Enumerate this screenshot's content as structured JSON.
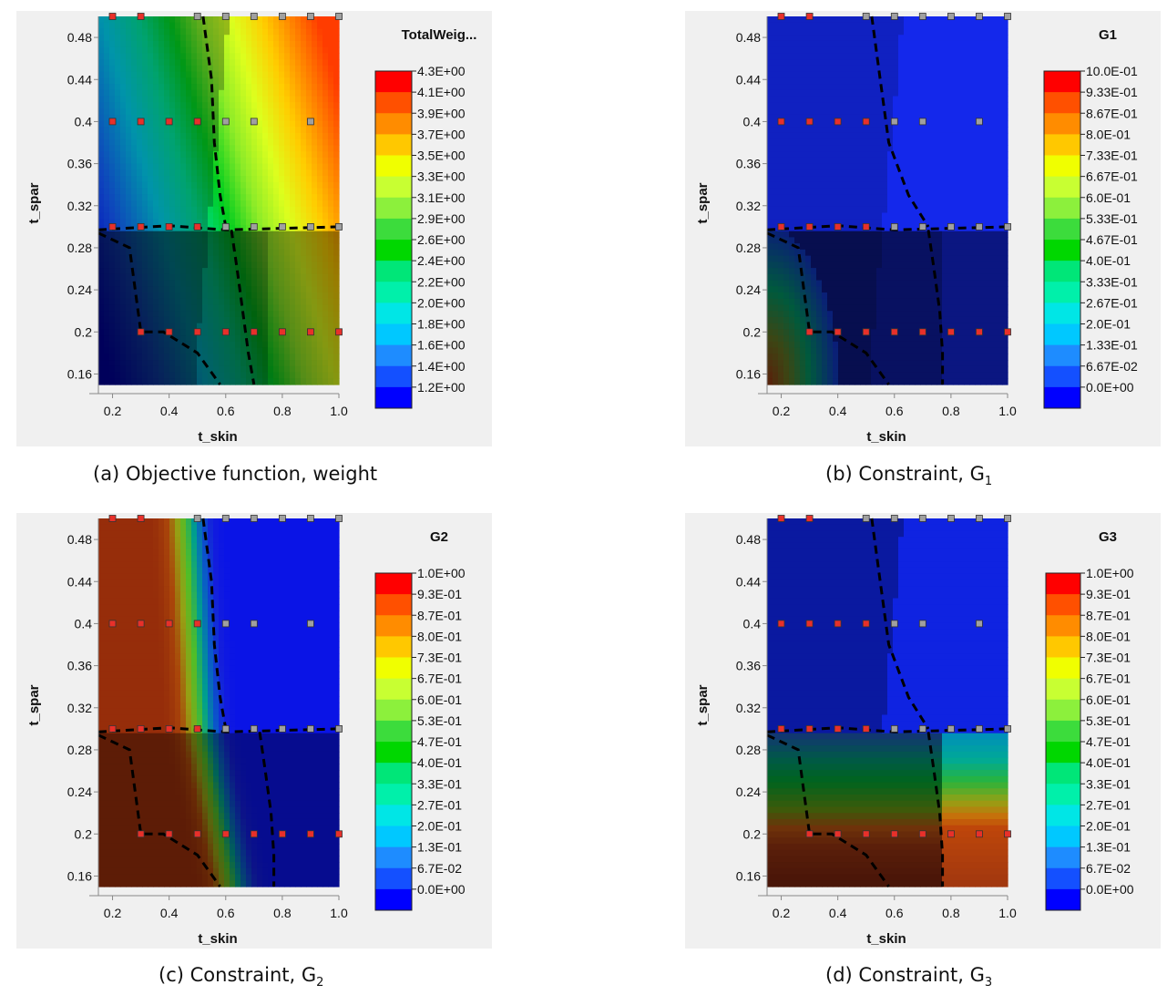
{
  "figure": {
    "panels": [
      {
        "letter": "(a)",
        "caption": "Objective function, weight",
        "subscript": ""
      },
      {
        "letter": "(b)",
        "caption": "Constraint, G",
        "subscript": "1"
      },
      {
        "letter": "(c)",
        "caption": "Constraint, G",
        "subscript": "2"
      },
      {
        "letter": "(d)",
        "caption": "Constraint, G",
        "subscript": "3"
      }
    ]
  },
  "chart_data": [
    {
      "type": "heatmap",
      "title": "TotalWeig...",
      "xlabel": "t_skin",
      "ylabel": "t_spar",
      "xlim": [
        0.15,
        1.0
      ],
      "ylim": [
        0.15,
        0.5
      ],
      "x_ticks": [
        "0.2",
        "0.4",
        "0.6",
        "0.8",
        "1.0"
      ],
      "y_ticks": [
        "0.48",
        "0.44",
        "0.4",
        "0.36",
        "0.32",
        "0.28",
        "0.24",
        "0.2",
        "0.16"
      ],
      "legend_levels": [
        "4.3E+00",
        "4.1E+00",
        "3.9E+00",
        "3.7E+00",
        "3.5E+00",
        "3.3E+00",
        "3.1E+00",
        "2.9E+00",
        "2.6E+00",
        "2.4E+00",
        "2.2E+00",
        "2.0E+00",
        "1.8E+00",
        "1.6E+00",
        "1.4E+00",
        "1.2E+00"
      ],
      "legend_colors": [
        "#ff0000",
        "#ff5000",
        "#ff8c00",
        "#ffc800",
        "#f0ff00",
        "#c8ff32",
        "#8cf03c",
        "#3cdc3c",
        "#00d700",
        "#00e678",
        "#00f0aa",
        "#00e6e6",
        "#00c8ff",
        "#1e8cff",
        "#1450ff",
        "#0000ff"
      ],
      "field": "weight",
      "sample_points": {
        "red": [
          [
            0.2,
            0.5
          ],
          [
            0.3,
            0.5
          ],
          [
            0.2,
            0.4
          ],
          [
            0.3,
            0.4
          ],
          [
            0.4,
            0.4
          ],
          [
            0.5,
            0.4
          ],
          [
            0.2,
            0.3
          ],
          [
            0.3,
            0.3
          ],
          [
            0.4,
            0.3
          ],
          [
            0.5,
            0.3
          ],
          [
            0.3,
            0.2
          ],
          [
            0.4,
            0.2
          ],
          [
            0.5,
            0.2
          ],
          [
            0.6,
            0.2
          ],
          [
            0.7,
            0.2
          ],
          [
            0.8,
            0.2
          ],
          [
            0.9,
            0.2
          ],
          [
            1.0,
            0.2
          ]
        ],
        "gray": [
          [
            0.5,
            0.5
          ],
          [
            0.6,
            0.5
          ],
          [
            0.7,
            0.5
          ],
          [
            0.8,
            0.5
          ],
          [
            0.9,
            0.5
          ],
          [
            1.0,
            0.5
          ],
          [
            0.6,
            0.4
          ],
          [
            0.7,
            0.4
          ],
          [
            0.9,
            0.4
          ],
          [
            0.6,
            0.3
          ],
          [
            0.7,
            0.3
          ],
          [
            0.8,
            0.3
          ],
          [
            0.9,
            0.3
          ],
          [
            1.0,
            0.3
          ]
        ]
      }
    },
    {
      "type": "heatmap",
      "title": "G1",
      "xlabel": "t_skin",
      "ylabel": "t_spar",
      "xlim": [
        0.15,
        1.0
      ],
      "ylim": [
        0.15,
        0.5
      ],
      "x_ticks": [
        "0.2",
        "0.4",
        "0.6",
        "0.8",
        "1.0"
      ],
      "y_ticks": [
        "0.48",
        "0.44",
        "0.4",
        "0.36",
        "0.32",
        "0.28",
        "0.24",
        "0.2",
        "0.16"
      ],
      "legend_levels": [
        "10.0E-01",
        "9.33E-01",
        "8.67E-01",
        "8.0E-01",
        "7.33E-01",
        "6.67E-01",
        "6.0E-01",
        "5.33E-01",
        "4.67E-01",
        "4.0E-01",
        "3.33E-01",
        "2.67E-01",
        "2.0E-01",
        "1.33E-01",
        "6.67E-02",
        "0.0E+00"
      ],
      "legend_colors": [
        "#ff0000",
        "#ff5000",
        "#ff8c00",
        "#ffc800",
        "#f0ff00",
        "#c8ff32",
        "#8cf03c",
        "#3cdc3c",
        "#00d700",
        "#00e678",
        "#00f0aa",
        "#00e6e6",
        "#00c8ff",
        "#1e8cff",
        "#1450ff",
        "#0000ff"
      ],
      "field": "g1",
      "sample_points": {
        "red": [
          [
            0.2,
            0.5
          ],
          [
            0.3,
            0.5
          ],
          [
            0.2,
            0.4
          ],
          [
            0.3,
            0.4
          ],
          [
            0.4,
            0.4
          ],
          [
            0.5,
            0.4
          ],
          [
            0.2,
            0.3
          ],
          [
            0.3,
            0.3
          ],
          [
            0.4,
            0.3
          ],
          [
            0.5,
            0.3
          ],
          [
            0.3,
            0.2
          ],
          [
            0.4,
            0.2
          ],
          [
            0.5,
            0.2
          ],
          [
            0.6,
            0.2
          ],
          [
            0.7,
            0.2
          ],
          [
            0.8,
            0.2
          ],
          [
            0.9,
            0.2
          ],
          [
            1.0,
            0.2
          ]
        ],
        "gray": [
          [
            0.5,
            0.5
          ],
          [
            0.6,
            0.5
          ],
          [
            0.7,
            0.5
          ],
          [
            0.8,
            0.5
          ],
          [
            0.9,
            0.5
          ],
          [
            1.0,
            0.5
          ],
          [
            0.6,
            0.4
          ],
          [
            0.7,
            0.4
          ],
          [
            0.9,
            0.4
          ],
          [
            0.6,
            0.3
          ],
          [
            0.7,
            0.3
          ],
          [
            0.8,
            0.3
          ],
          [
            0.9,
            0.3
          ],
          [
            1.0,
            0.3
          ]
        ]
      }
    },
    {
      "type": "heatmap",
      "title": "G2",
      "xlabel": "t_skin",
      "ylabel": "t_spar",
      "xlim": [
        0.15,
        1.0
      ],
      "ylim": [
        0.15,
        0.5
      ],
      "x_ticks": [
        "0.2",
        "0.4",
        "0.6",
        "0.8",
        "1.0"
      ],
      "y_ticks": [
        "0.48",
        "0.44",
        "0.4",
        "0.36",
        "0.32",
        "0.28",
        "0.24",
        "0.2",
        "0.16"
      ],
      "legend_levels": [
        "1.0E+00",
        "9.3E-01",
        "8.7E-01",
        "8.0E-01",
        "7.3E-01",
        "6.7E-01",
        "6.0E-01",
        "5.3E-01",
        "4.7E-01",
        "4.0E-01",
        "3.3E-01",
        "2.7E-01",
        "2.0E-01",
        "1.3E-01",
        "6.7E-02",
        "0.0E+00"
      ],
      "legend_colors": [
        "#ff0000",
        "#ff5000",
        "#ff8c00",
        "#ffc800",
        "#f0ff00",
        "#c8ff32",
        "#8cf03c",
        "#3cdc3c",
        "#00d700",
        "#00e678",
        "#00f0aa",
        "#00e6e6",
        "#00c8ff",
        "#1e8cff",
        "#1450ff",
        "#0000ff"
      ],
      "field": "g2",
      "sample_points": {
        "red": [
          [
            0.2,
            0.5
          ],
          [
            0.3,
            0.5
          ],
          [
            0.2,
            0.4
          ],
          [
            0.3,
            0.4
          ],
          [
            0.4,
            0.4
          ],
          [
            0.5,
            0.4
          ],
          [
            0.2,
            0.3
          ],
          [
            0.3,
            0.3
          ],
          [
            0.4,
            0.3
          ],
          [
            0.5,
            0.3
          ],
          [
            0.3,
            0.2
          ],
          [
            0.4,
            0.2
          ],
          [
            0.5,
            0.2
          ],
          [
            0.6,
            0.2
          ],
          [
            0.7,
            0.2
          ],
          [
            0.8,
            0.2
          ],
          [
            0.9,
            0.2
          ],
          [
            1.0,
            0.2
          ]
        ],
        "gray": [
          [
            0.5,
            0.5
          ],
          [
            0.6,
            0.5
          ],
          [
            0.7,
            0.5
          ],
          [
            0.8,
            0.5
          ],
          [
            0.9,
            0.5
          ],
          [
            1.0,
            0.5
          ],
          [
            0.6,
            0.4
          ],
          [
            0.7,
            0.4
          ],
          [
            0.9,
            0.4
          ],
          [
            0.6,
            0.3
          ],
          [
            0.7,
            0.3
          ],
          [
            0.8,
            0.3
          ],
          [
            0.9,
            0.3
          ],
          [
            1.0,
            0.3
          ]
        ]
      }
    },
    {
      "type": "heatmap",
      "title": "G3",
      "xlabel": "t_skin",
      "ylabel": "t_spar",
      "xlim": [
        0.15,
        1.0
      ],
      "ylim": [
        0.15,
        0.5
      ],
      "x_ticks": [
        "0.2",
        "0.4",
        "0.6",
        "0.8",
        "1.0"
      ],
      "y_ticks": [
        "0.48",
        "0.44",
        "0.4",
        "0.36",
        "0.32",
        "0.28",
        "0.24",
        "0.2",
        "0.16"
      ],
      "legend_levels": [
        "1.0E+00",
        "9.3E-01",
        "8.7E-01",
        "8.0E-01",
        "7.3E-01",
        "6.7E-01",
        "6.0E-01",
        "5.3E-01",
        "4.7E-01",
        "4.0E-01",
        "3.3E-01",
        "2.7E-01",
        "2.0E-01",
        "1.3E-01",
        "6.7E-02",
        "0.0E+00"
      ],
      "legend_colors": [
        "#ff0000",
        "#ff5000",
        "#ff8c00",
        "#ffc800",
        "#f0ff00",
        "#c8ff32",
        "#8cf03c",
        "#3cdc3c",
        "#00d700",
        "#00e678",
        "#00f0aa",
        "#00e6e6",
        "#00c8ff",
        "#1e8cff",
        "#1450ff",
        "#0000ff"
      ],
      "field": "g3",
      "sample_points": {
        "red": [
          [
            0.2,
            0.5
          ],
          [
            0.3,
            0.5
          ],
          [
            0.2,
            0.4
          ],
          [
            0.3,
            0.4
          ],
          [
            0.4,
            0.4
          ],
          [
            0.5,
            0.4
          ],
          [
            0.2,
            0.3
          ],
          [
            0.3,
            0.3
          ],
          [
            0.4,
            0.3
          ],
          [
            0.5,
            0.3
          ],
          [
            0.3,
            0.2
          ],
          [
            0.4,
            0.2
          ],
          [
            0.5,
            0.2
          ],
          [
            0.6,
            0.2
          ],
          [
            0.7,
            0.2
          ],
          [
            0.8,
            0.2
          ],
          [
            0.9,
            0.2
          ],
          [
            1.0,
            0.2
          ]
        ],
        "gray": [
          [
            0.5,
            0.5
          ],
          [
            0.6,
            0.5
          ],
          [
            0.7,
            0.5
          ],
          [
            0.8,
            0.5
          ],
          [
            0.9,
            0.5
          ],
          [
            1.0,
            0.5
          ],
          [
            0.6,
            0.4
          ],
          [
            0.7,
            0.4
          ],
          [
            0.9,
            0.4
          ],
          [
            0.6,
            0.3
          ],
          [
            0.7,
            0.3
          ],
          [
            0.8,
            0.3
          ],
          [
            0.9,
            0.3
          ],
          [
            1.0,
            0.3
          ]
        ]
      }
    }
  ]
}
